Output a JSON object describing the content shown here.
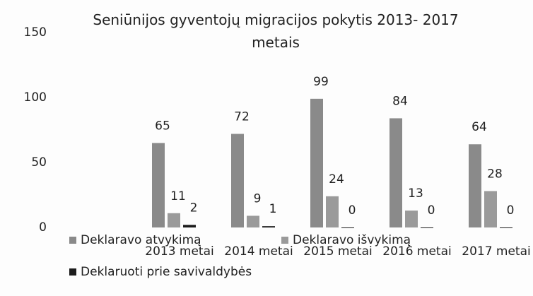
{
  "chart_data": {
    "type": "bar",
    "title": "Seniūnijos gyventojų migracijos pokytis 2013- 2017 metais",
    "categories": [
      "2013 metai",
      "2014 metai",
      "2015 metai",
      "2016 metai",
      "2017 metai"
    ],
    "series": [
      {
        "name": "Deklaravo atvykimą",
        "color": "#8a8a8a",
        "values": [
          65,
          72,
          99,
          84,
          64
        ]
      },
      {
        "name": "Deklaravo išvykimą",
        "color": "#9a9a9a",
        "values": [
          11,
          9,
          24,
          13,
          28
        ]
      },
      {
        "name": "Deklaruoti prie savivaldybės",
        "color": "#1c1c1c",
        "values": [
          2,
          1,
          0,
          0,
          0
        ]
      }
    ],
    "ylim": [
      0,
      150
    ],
    "yticks": [
      0,
      50,
      100,
      150
    ],
    "grid": false,
    "legend": "bottom-left"
  }
}
